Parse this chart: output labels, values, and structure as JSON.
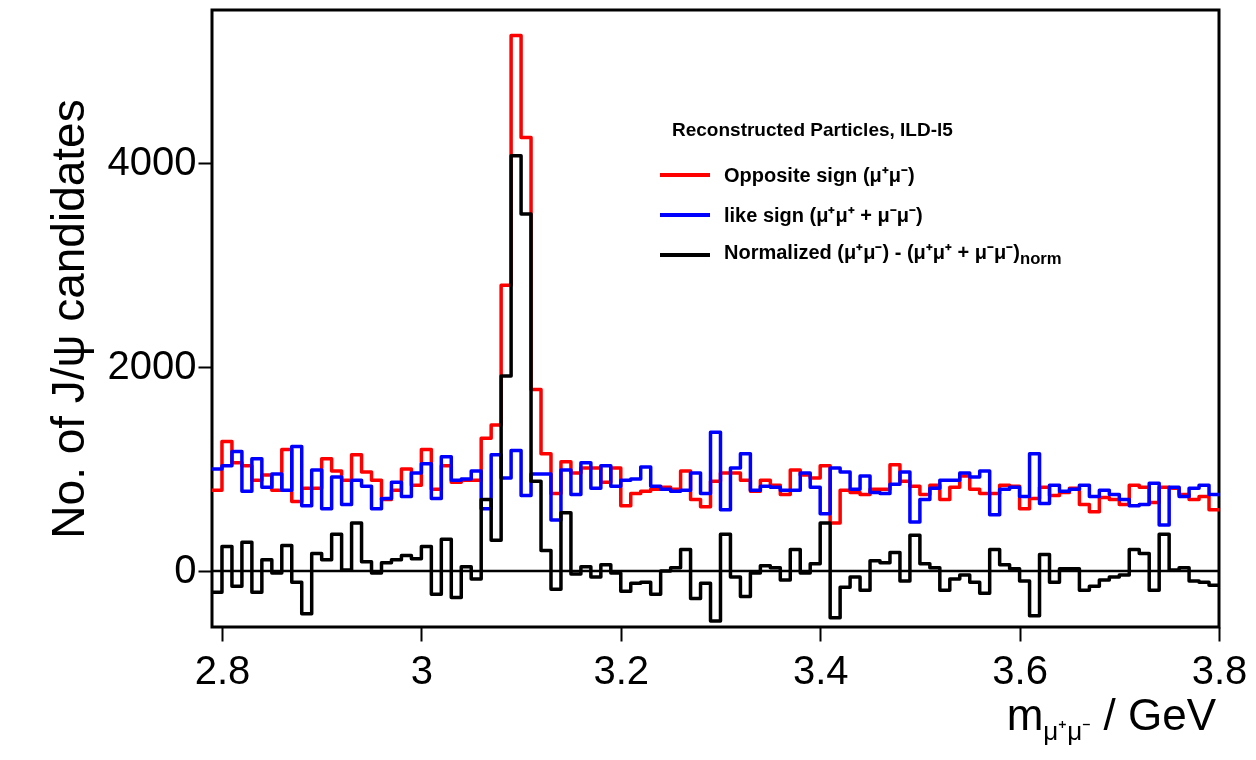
{
  "chart_data": {
    "type": "histogram",
    "ylabel": "No. of J/ψ candidates",
    "xlabel": "m$_{μ⁺μ⁻}$ / GeV",
    "legend_title": "Reconstructed Particles, ILD-l5",
    "legend": "top right",
    "grid": false,
    "line_style": "solid",
    "xlim": [
      2.79,
      3.8
    ],
    "xticks": [
      2.8,
      3,
      3.2,
      3.4,
      3.6,
      3.8
    ],
    "ylim": [
      -550,
      5500
    ],
    "yticks": [
      0,
      2000,
      4000
    ],
    "ref_lines": [
      {
        "axis": "y",
        "value": 0,
        "color": "#000000"
      }
    ],
    "bins": [
      2.79,
      2.8,
      2.81,
      2.82,
      2.83,
      2.84,
      2.85,
      2.86,
      2.87,
      2.88,
      2.89,
      2.9,
      2.91,
      2.92,
      2.93,
      2.94,
      2.95,
      2.96,
      2.97,
      2.98,
      2.99,
      3,
      3.01,
      3.02,
      3.03,
      3.04,
      3.05,
      3.06,
      3.07,
      3.08,
      3.09,
      3.1,
      3.11,
      3.12,
      3.13,
      3.14,
      3.15,
      3.16,
      3.17,
      3.18,
      3.19,
      3.2,
      3.21,
      3.22,
      3.23,
      3.24,
      3.25,
      3.26,
      3.27,
      3.28,
      3.29,
      3.3,
      3.31,
      3.32,
      3.33,
      3.34,
      3.35,
      3.36,
      3.37,
      3.38,
      3.39,
      3.4,
      3.41,
      3.42,
      3.43,
      3.44,
      3.45,
      3.46,
      3.47,
      3.48,
      3.49,
      3.5,
      3.51,
      3.52,
      3.53,
      3.54,
      3.55,
      3.56,
      3.57,
      3.58,
      3.59,
      3.6,
      3.61,
      3.62,
      3.63,
      3.64,
      3.65,
      3.66,
      3.67,
      3.68,
      3.69,
      3.7,
      3.71,
      3.72,
      3.73,
      3.74,
      3.75,
      3.76,
      3.77,
      3.78,
      3.79,
      3.8
    ],
    "series": [
      {
        "name": "Opposite sign (μ⁺μ⁻)",
        "color": "#ff0000",
        "values": [
          790,
          1270,
          1060,
          1030,
          890,
          940,
          790,
          1190,
          680,
          810,
          810,
          1100,
          980,
          890,
          1140,
          970,
          890,
          700,
          790,
          1000,
          840,
          1190,
          800,
          1030,
          870,
          890,
          890,
          1300,
          1430,
          2800,
          5250,
          4250,
          1780,
          1150,
          760,
          1070,
          960,
          1010,
          1010,
          870,
          1010,
          640,
          760,
          780,
          800,
          820,
          800,
          980,
          700,
          630,
          880,
          960,
          960,
          890,
          780,
          890,
          840,
          750,
          990,
          940,
          910,
          1030,
          470,
          790,
          770,
          750,
          800,
          800,
          1040,
          880,
          830,
          750,
          840,
          700,
          820,
          930,
          800,
          760,
          760,
          840,
          830,
          610,
          710,
          820,
          740,
          770,
          810,
          650,
          580,
          720,
          700,
          650,
          840,
          820,
          670,
          820,
          810,
          750,
          700,
          730,
          600
        ]
      },
      {
        "name": "like sign (μ⁺μ⁺ + μ⁻μ⁻)",
        "color": "#0000ff",
        "values": [
          1000,
          1030,
          1170,
          780,
          1100,
          820,
          950,
          790,
          1220,
          640,
          990,
          610,
          920,
          650,
          890,
          830,
          610,
          710,
          870,
          730,
          960,
          1050,
          710,
          1120,
          890,
          900,
          980,
          610,
          1140,
          910,
          1180,
          740,
          950,
          950,
          500,
          990,
          750,
          1060,
          810,
          1030,
          830,
          890,
          900,
          1020,
          830,
          800,
          780,
          790,
          960,
          760,
          1360,
          600,
          1010,
          1150,
          790,
          830,
          820,
          790,
          790,
          960,
          820,
          560,
          1010,
          970,
          800,
          930,
          770,
          760,
          850,
          970,
          480,
          700,
          810,
          890,
          890,
          960,
          920,
          980,
          550,
          800,
          820,
          730,
          1150,
          660,
          840,
          780,
          800,
          840,
          730,
          790,
          750,
          700,
          640,
          650,
          860,
          450,
          820,
          730,
          810,
          840,
          750
        ]
      },
      {
        "name": "Normalized (μ⁺μ⁻) - (μ⁺μ⁺ + μ⁻μ⁻)$_{norm}$",
        "color": "#000000",
        "values": [
          -210,
          240,
          -150,
          280,
          -210,
          110,
          -20,
          250,
          -110,
          -420,
          170,
          110,
          360,
          10,
          470,
          90,
          -20,
          80,
          110,
          150,
          120,
          240,
          -230,
          310,
          -260,
          40,
          -80,
          700,
          300,
          1910,
          4070,
          3500,
          880,
          200,
          -180,
          570,
          -30,
          40,
          -60,
          60,
          -20,
          -200,
          -120,
          -110,
          -230,
          0,
          30,
          210,
          -270,
          -120,
          -490,
          360,
          -60,
          -250,
          -20,
          50,
          30,
          -90,
          210,
          -20,
          70,
          470,
          -460,
          -160,
          -60,
          -190,
          100,
          80,
          180,
          -100,
          350,
          70,
          30,
          -190,
          -80,
          -40,
          -110,
          -220,
          210,
          60,
          20,
          -100,
          -440,
          160,
          -110,
          20,
          20,
          -190,
          -150,
          -90,
          -60,
          -40,
          210,
          170,
          -190,
          360,
          10,
          30,
          -100,
          -110,
          -140
        ]
      }
    ]
  }
}
